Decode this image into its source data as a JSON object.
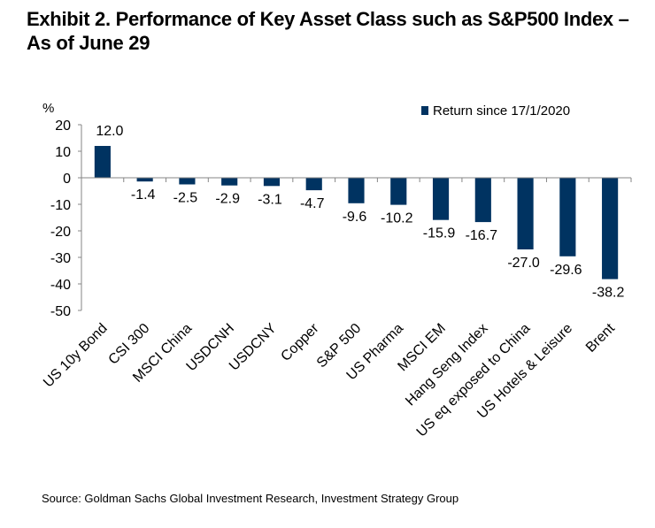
{
  "title": "Exhibit 2. Performance of Key Asset Class such as S&P500 Index – As of June 29",
  "source": "Source: Goldman Sachs Global Investment Research, Investment Strategy Group",
  "colors": {
    "bar": "#003361",
    "axis": "#868686"
  },
  "chart_data": {
    "type": "bar",
    "title": "Exhibit 2. Performance of Key Asset Class such as S&P500 Index – As of June 29",
    "xlabel": "",
    "ylabel": "%",
    "ylim": [
      -50,
      20
    ],
    "yticks": [
      20,
      10,
      0,
      -10,
      -20,
      -30,
      -40,
      -50
    ],
    "grid": false,
    "legend": {
      "position": "top-right",
      "entries": [
        "Return since 17/1/2020"
      ]
    },
    "categories": [
      "US 10y Bond",
      "CSI 300",
      "MSCI China",
      "USDCNH",
      "USDCNY",
      "Copper",
      "S&P 500",
      "US Pharma",
      "MSCI EM",
      "Hang Seng Index",
      "US eq exposed to China",
      "US Hotels & Leisure",
      "Brent"
    ],
    "series": [
      {
        "name": "Return since 17/1/2020",
        "values": [
          12.0,
          -1.4,
          -2.5,
          -2.9,
          -3.1,
          -4.7,
          -9.6,
          -10.2,
          -15.9,
          -16.7,
          -27.0,
          -29.6,
          -38.2
        ],
        "labels": [
          "12.0",
          "-1.4",
          "-2.5",
          "-2.9",
          "-3.1",
          "-4.7",
          "-9.6",
          "-10.2",
          "-15.9",
          "-16.7",
          "-27.0",
          "-29.6",
          "-38.2"
        ]
      }
    ]
  }
}
